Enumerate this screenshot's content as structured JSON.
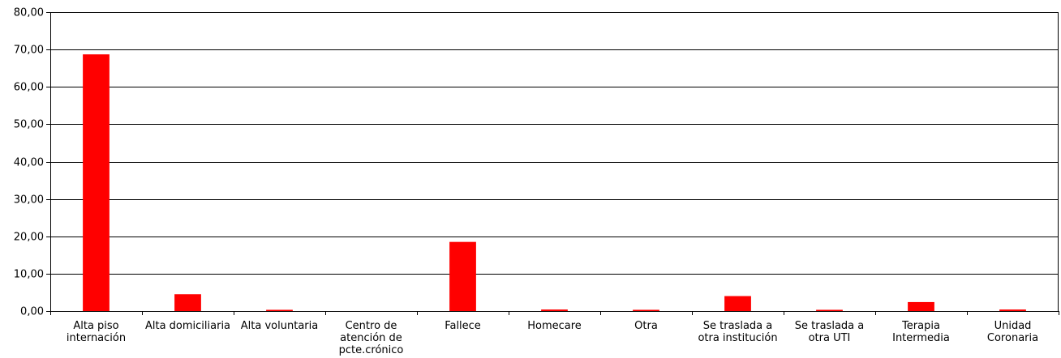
{
  "chart_data": {
    "type": "bar",
    "categories": [
      "Alta piso\ninternación",
      "Alta domiciliaria",
      "Alta voluntaria",
      "Centro de\natención de\npcte.crónico",
      "Fallece",
      "Homecare",
      "Otra",
      "Se traslada a\notra institución",
      "Se traslada a\notra UTI",
      "Terapia\nIntermedia",
      "Unidad\nCoronaria"
    ],
    "values": [
      68.7,
      4.5,
      0.3,
      0.0,
      18.5,
      0.4,
      0.1,
      4.0,
      0.1,
      2.4,
      0.4
    ],
    "ylim": [
      0,
      80
    ],
    "yticks": [
      "0,00",
      "10,00",
      "20,00",
      "30,00",
      "40,00",
      "50,00",
      "60,00",
      "70,00",
      "80,00"
    ],
    "title": "",
    "xlabel": "",
    "ylabel": "",
    "grid": true,
    "bar_color": "#ff0000"
  }
}
